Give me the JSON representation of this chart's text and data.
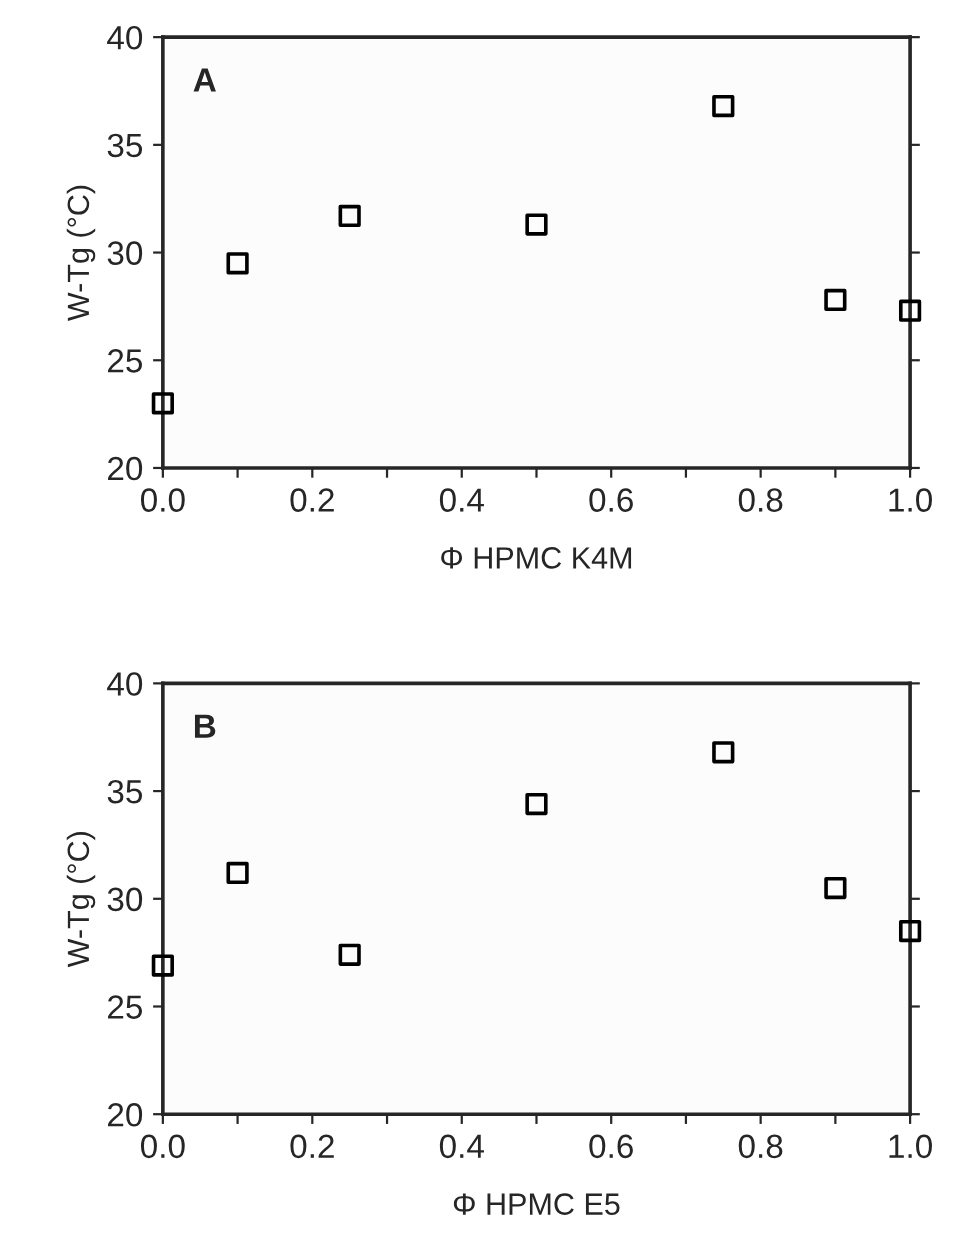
{
  "chart_data": [
    {
      "type": "scatter",
      "xlabel": "Φ HPMC K4M",
      "ylabel": "W-Tg (°C)",
      "annotations": [
        "A"
      ],
      "x": [
        0,
        0.1,
        0.25,
        0.5,
        0.75,
        0.9,
        1.0
      ],
      "series": [
        {
          "color": "#000000",
          "values": [
            23,
            29.5,
            31.7,
            31.3,
            36.8,
            27.8,
            27.3
          ]
        }
      ],
      "xlim": [
        0,
        1
      ],
      "ylim": [
        20,
        40
      ],
      "xticks": [
        {
          "value": 0,
          "label": "0.0"
        },
        {
          "value": 0.1,
          "label": null
        },
        {
          "value": 0.2,
          "label": "0.2"
        },
        {
          "value": 0.3,
          "label": null
        },
        {
          "value": 0.4,
          "label": "0.4"
        },
        {
          "value": 0.5,
          "label": null
        },
        {
          "value": 0.6,
          "label": "0.6"
        },
        {
          "value": 0.7,
          "label": null
        },
        {
          "value": 0.8,
          "label": "0.8"
        },
        {
          "value": 0.9,
          "label": null
        },
        {
          "value": 1,
          "label": "1.0"
        }
      ],
      "yticks": [
        20,
        25,
        30,
        35,
        40
      ],
      "marker": "square",
      "grid": false,
      "legend": false
    },
    {
      "type": "scatter",
      "xlabel": "Φ HPMC E5",
      "ylabel": "W-Tg (°C)",
      "annotations": [
        "B"
      ],
      "x": [
        0,
        0.1,
        0.25,
        0.5,
        0.75,
        0.9,
        1.0
      ],
      "series": [
        {
          "color": "#000000",
          "values": [
            26.9,
            31.2,
            27.4,
            34.4,
            36.8,
            30.5,
            28.5
          ]
        }
      ],
      "xlim": [
        0,
        1
      ],
      "ylim": [
        20,
        40
      ],
      "xticks": [
        {
          "value": 0,
          "label": "0.0"
        },
        {
          "value": 0.1,
          "label": null
        },
        {
          "value": 0.2,
          "label": "0.2"
        },
        {
          "value": 0.3,
          "label": null
        },
        {
          "value": 0.4,
          "label": "0.4"
        },
        {
          "value": 0.5,
          "label": null
        },
        {
          "value": 0.6,
          "label": "0.6"
        },
        {
          "value": 0.7,
          "label": null
        },
        {
          "value": 0.8,
          "label": "0.8"
        },
        {
          "value": 0.9,
          "label": null
        },
        {
          "value": 1,
          "label": "1.0"
        }
      ],
      "yticks": [
        20,
        25,
        30,
        35,
        40
      ],
      "marker": "square",
      "grid": false,
      "legend": false
    }
  ]
}
